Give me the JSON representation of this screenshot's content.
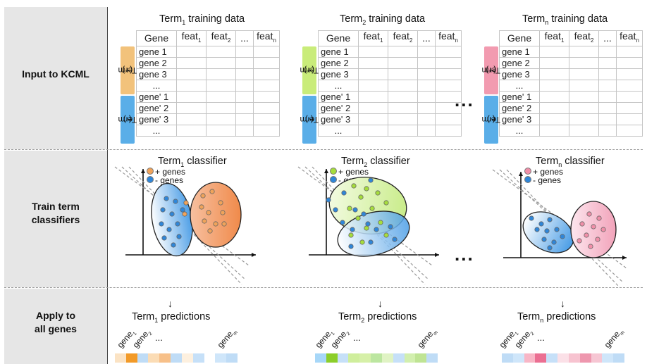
{
  "sections": {
    "input": "Input to KCML",
    "train_line1": "Train term",
    "train_line2": "classifiers",
    "apply_line1": "Apply to",
    "apply_line2": "all genes"
  },
  "table": {
    "header": {
      "gene": "Gene",
      "feat": "feat",
      "feat_sub1": "1",
      "feat_sub2": "2",
      "feat_subn": "n",
      "dots": "..."
    },
    "pos_rows": [
      "gene 1",
      "gene 2",
      "gene 3",
      "..."
    ],
    "neg_rows": [
      "gene' 1",
      "gene' 2",
      "gene' 3",
      "..."
    ]
  },
  "terms": [
    {
      "term": "Term",
      "sub": "1",
      "training_title": "training data",
      "classifier_title": "classifier",
      "predictions_title": "predictions",
      "pos_label": "(+)",
      "neg_label": "(-)",
      "pos_color": "#f2c27b",
      "neg_color": "#5aaee8",
      "dot_color": "#f0a35a",
      "legend_pos": "+ genes",
      "legend_neg": "- genes",
      "strip_colors": [
        "#fbe3c4",
        "#f29a28",
        "#bfdcf6",
        "#fbdcb5",
        "#f7c089",
        "#bfdcf6",
        "#fdf0df",
        "#c6e0f8",
        "#ffffff",
        "#cfe6fa",
        "#bfdcf6"
      ]
    },
    {
      "term": "Term",
      "sub": "2",
      "training_title": "training data",
      "classifier_title": "classifier",
      "predictions_title": "predictions",
      "pos_label": "(+)",
      "neg_label": "(-)",
      "pos_color": "#c9ec7a",
      "neg_color": "#5aaee8",
      "dot_color": "#a6dd3c",
      "legend_pos": "+ genes",
      "legend_neg": "- genes",
      "strip_colors": [
        "#a7d7f8",
        "#8cce2a",
        "#c6e0f8",
        "#cfee9c",
        "#d6f0a8",
        "#bce6a0",
        "#e0f3c4",
        "#c6e0f8",
        "#d2efae",
        "#bfe494",
        "#bfdcf6"
      ]
    },
    {
      "term": "Term",
      "sub": "n",
      "training_title": "training data",
      "classifier_title": "classifier",
      "predictions_title": "predictions",
      "pos_label": "(+)",
      "neg_label": "(-)",
      "pos_color": "#f29bb0",
      "neg_color": "#5aaee8",
      "dot_color": "#f08fa8",
      "legend_pos": "+ genes",
      "legend_neg": "- genes",
      "strip_colors": [
        "#bfdcf6",
        "#cfe6fa",
        "#f8b6c6",
        "#eb6f92",
        "#c6e0f8",
        "#fbe0e7",
        "#f7c3d0",
        "#ee97ae",
        "#f6c6d3",
        "#cfe6fa",
        "#bfdcf6"
      ]
    }
  ],
  "ellipsis": "...",
  "gene_labels": {
    "g": "gene",
    "s1": "1",
    "s2": "2",
    "sm": "m",
    "dots": "..."
  }
}
